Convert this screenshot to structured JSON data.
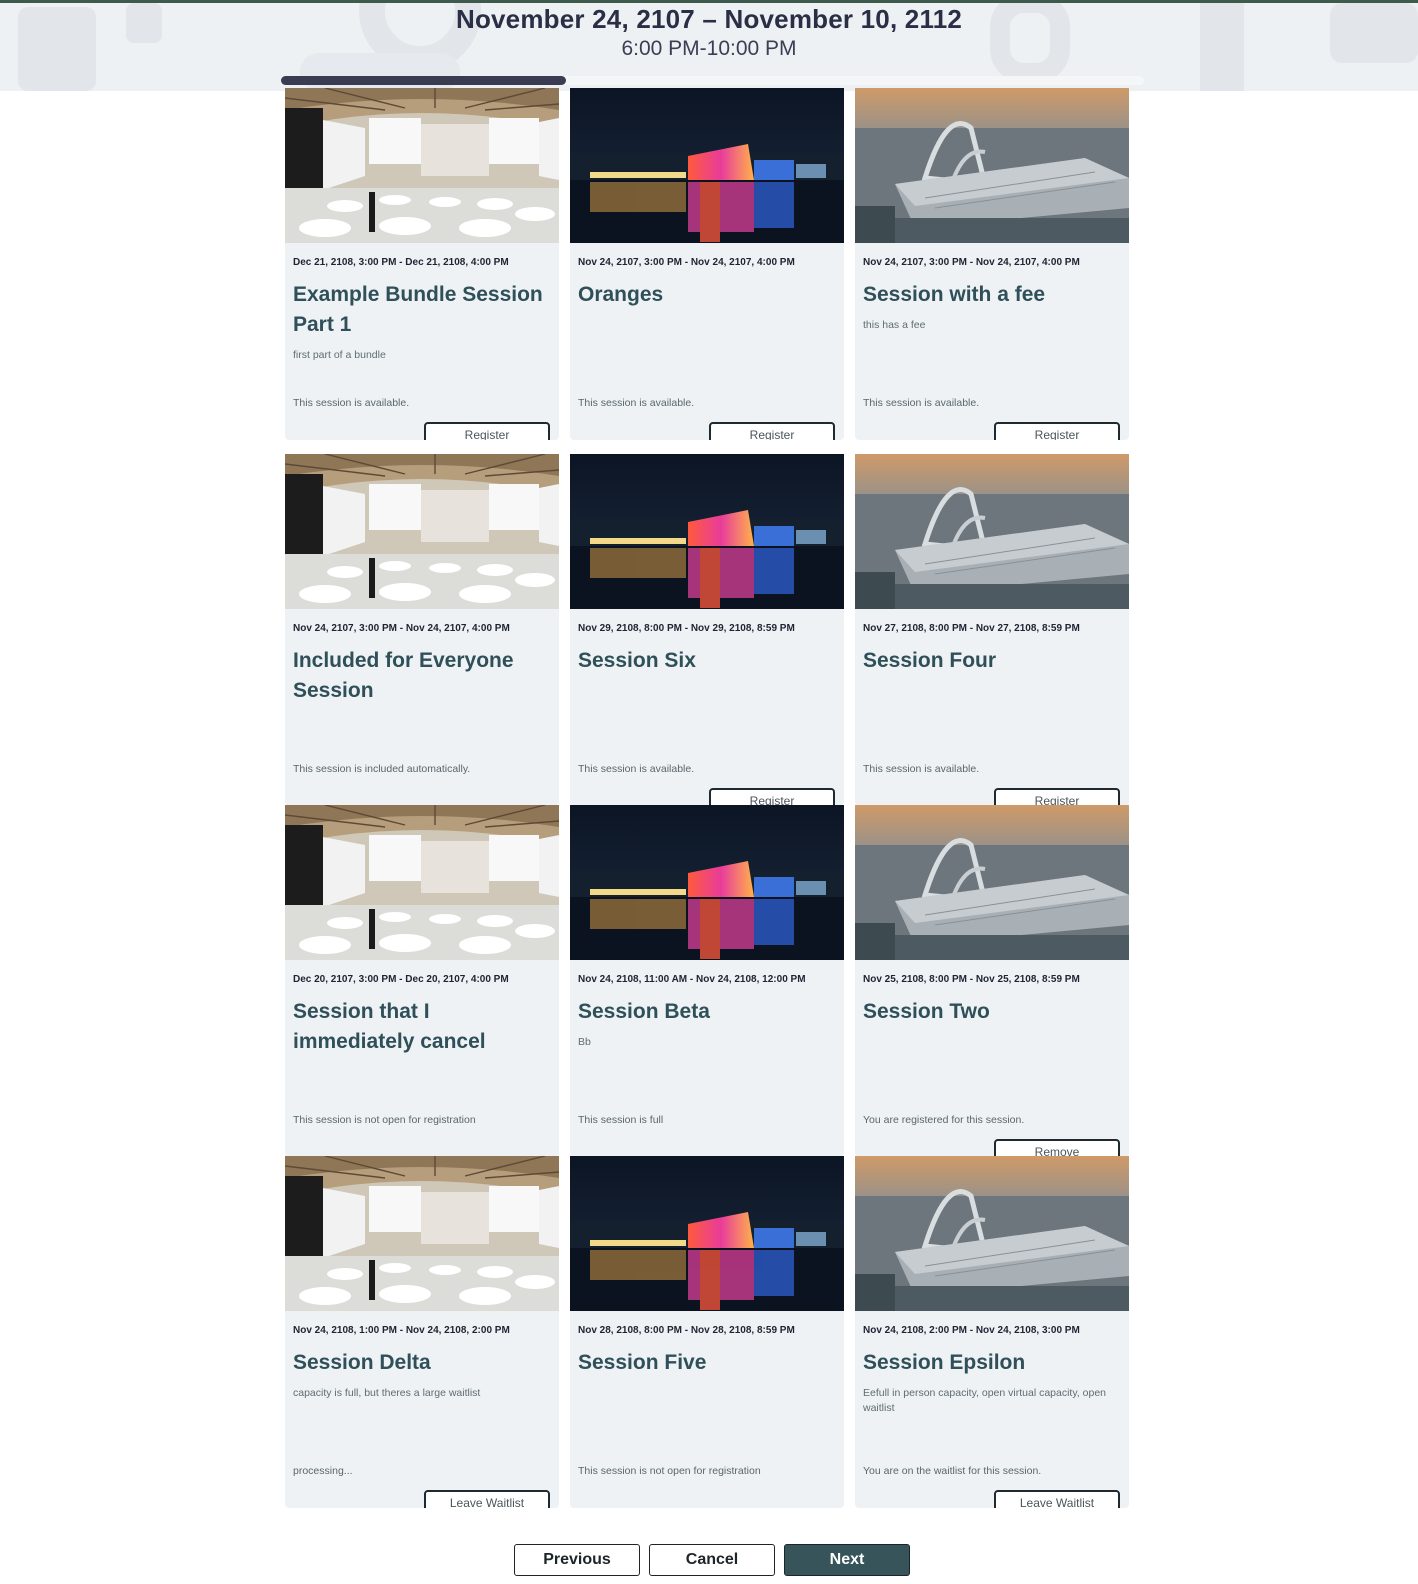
{
  "header": {
    "date_range": "November 24, 2107 – November 10, 2112",
    "time_range": "6:00 PM-10:00 PM",
    "progress_fraction": 0.33,
    "accent_color": "#3d5a4c"
  },
  "sessions": [
    {
      "image": "conference-hall-photo",
      "date": "Dec 21, 2108, 3:00 PM - Dec 21, 2108, 4:00 PM",
      "title": "Example Bundle Session Part 1",
      "description": "first part of a bundle",
      "status": "This session is available.",
      "button": "Register"
    },
    {
      "image": "night-city-photo",
      "date": "Nov 24, 2107, 3:00 PM - Nov 24, 2107, 4:00 PM",
      "title": "Oranges",
      "description": "",
      "status": "This session is available.",
      "button": "Register"
    },
    {
      "image": "convention-center-photo",
      "date": "Nov 24, 2107, 3:00 PM - Nov 24, 2107, 4:00 PM",
      "title": "Session with a fee",
      "description": "this has a fee",
      "status": "This session is available.",
      "button": "Register"
    },
    {
      "image": "conference-hall-photo",
      "date": "Nov 24, 2107, 3:00 PM - Nov 24, 2107, 4:00 PM",
      "title": "Included for Everyone Session",
      "description": "",
      "status": "This session is included automatically.",
      "button": ""
    },
    {
      "image": "night-city-photo",
      "date": "Nov 29, 2108, 8:00 PM - Nov 29, 2108, 8:59 PM",
      "title": "Session Six",
      "description": "",
      "status": "This session is available.",
      "button": "Register"
    },
    {
      "image": "convention-center-photo",
      "date": "Nov 27, 2108, 8:00 PM - Nov 27, 2108, 8:59 PM",
      "title": "Session Four",
      "description": "",
      "status": "This session is available.",
      "button": "Register"
    },
    {
      "image": "conference-hall-photo",
      "date": "Dec 20, 2107, 3:00 PM - Dec 20, 2107, 4:00 PM",
      "title": "Session that I immediately cancel",
      "description": "",
      "status": "This session is not open for registration",
      "button": ""
    },
    {
      "image": "night-city-photo",
      "date": "Nov 24, 2108, 11:00 AM - Nov 24, 2108, 12:00 PM",
      "title": "Session Beta",
      "description": "Bb",
      "status": "This session is full",
      "button": ""
    },
    {
      "image": "convention-center-photo",
      "date": "Nov 25, 2108, 8:00 PM - Nov 25, 2108, 8:59 PM",
      "title": "Session Two",
      "description": "",
      "status": "You are registered for this session.",
      "button": "Remove"
    },
    {
      "image": "conference-hall-photo",
      "date": "Nov 24, 2108, 1:00 PM - Nov 24, 2108, 2:00 PM",
      "title": "Session Delta",
      "description": "capacity is full, but theres a large waitlist",
      "status": "processing...",
      "button": "Leave Waitlist"
    },
    {
      "image": "night-city-photo",
      "date": "Nov 28, 2108, 8:00 PM - Nov 28, 2108, 8:59 PM",
      "title": "Session Five",
      "description": "",
      "status": "This session is not open for registration",
      "button": ""
    },
    {
      "image": "convention-center-photo",
      "date": "Nov 24, 2108, 2:00 PM - Nov 24, 2108, 3:00 PM",
      "title": "Session Epsilon",
      "description": "Eefull in person capacity, open virtual capacity, open waitlist",
      "status": "You are on the waitlist for this session.",
      "button": "Leave Waitlist"
    }
  ],
  "footer": {
    "previous_label": "Previous",
    "cancel_label": "Cancel",
    "next_label": "Next",
    "next_color": "#36545a"
  }
}
